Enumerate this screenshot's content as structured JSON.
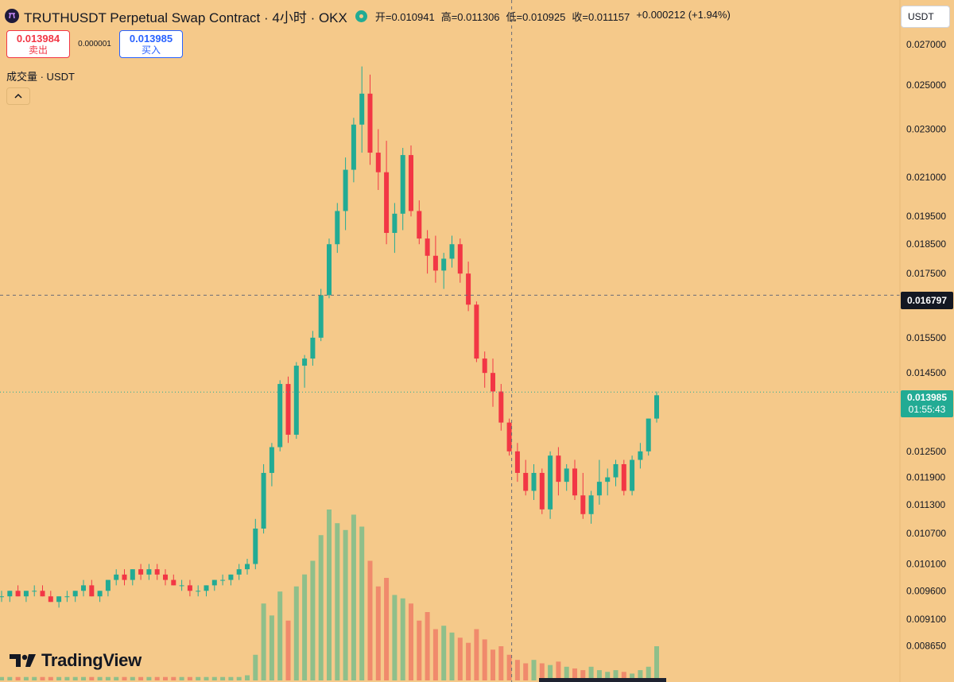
{
  "header": {
    "symbol_title": "TRUTHUSDT Perpetual Swap Contract · 4小时 · OKX",
    "open": "开=0.010941",
    "high": "高=0.011306",
    "low": "低=0.010925",
    "close": "收=0.011157",
    "change": "+0.000212 (+1.94%)"
  },
  "trade": {
    "sell_price": "0.013984",
    "sell_label": "卖出",
    "spread": "0.000001",
    "buy_price": "0.013985",
    "buy_label": "买入"
  },
  "volume_pane": {
    "label": "成交量 · USDT"
  },
  "currency": {
    "selected": "USDT"
  },
  "price_axis": {
    "crosshair_price": "0.016797",
    "last_price": "0.013985",
    "countdown": "01:55:43"
  },
  "watermark": {
    "brand": "TradingView"
  },
  "colors": {
    "background": "#f5c98a",
    "up": "#22ab94",
    "down": "#f23645",
    "volume_up": "#8fbf8a",
    "volume_down": "#f08a6c"
  },
  "chart_data": {
    "type": "candlestick",
    "scale": "log",
    "ylim": [
      0.0083,
      0.0285
    ],
    "y_ticks": [
      "0.027000",
      "0.025000",
      "0.023000",
      "0.021000",
      "0.019500",
      "0.018500",
      "0.017500",
      "0.016500",
      "0.015500",
      "0.014500",
      "0.013500",
      "0.012500",
      "0.011900",
      "0.011300",
      "0.010700",
      "0.010100",
      "0.009600",
      "0.009100",
      "0.008650"
    ],
    "candles": [
      [
        0.0095,
        0.0096,
        0.0094,
        0.0095
      ],
      [
        0.0095,
        0.0096,
        0.0094,
        0.0096
      ],
      [
        0.0096,
        0.0097,
        0.0095,
        0.0095
      ],
      [
        0.0095,
        0.0096,
        0.0094,
        0.0096
      ],
      [
        0.0096,
        0.0097,
        0.0095,
        0.0096
      ],
      [
        0.0096,
        0.0097,
        0.0095,
        0.0095
      ],
      [
        0.0095,
        0.0096,
        0.0094,
        0.0094
      ],
      [
        0.0094,
        0.0095,
        0.0093,
        0.0095
      ],
      [
        0.0095,
        0.0096,
        0.0094,
        0.0095
      ],
      [
        0.0095,
        0.0096,
        0.0094,
        0.0096
      ],
      [
        0.0096,
        0.0098,
        0.0095,
        0.0097
      ],
      [
        0.0097,
        0.0098,
        0.0095,
        0.0095
      ],
      [
        0.0095,
        0.0096,
        0.0094,
        0.0096
      ],
      [
        0.0096,
        0.0098,
        0.0095,
        0.0098
      ],
      [
        0.0098,
        0.01,
        0.0097,
        0.0099
      ],
      [
        0.0099,
        0.01,
        0.0097,
        0.0098
      ],
      [
        0.0098,
        0.01,
        0.0097,
        0.01
      ],
      [
        0.01,
        0.0101,
        0.0098,
        0.0099
      ],
      [
        0.0099,
        0.0101,
        0.0098,
        0.01
      ],
      [
        0.01,
        0.0101,
        0.0098,
        0.0099
      ],
      [
        0.0099,
        0.01,
        0.0097,
        0.0098
      ],
      [
        0.0098,
        0.0099,
        0.0097,
        0.0097
      ],
      [
        0.0097,
        0.0098,
        0.0096,
        0.0097
      ],
      [
        0.0097,
        0.0098,
        0.0095,
        0.0096
      ],
      [
        0.0096,
        0.0097,
        0.0095,
        0.0096
      ],
      [
        0.0096,
        0.0097,
        0.0095,
        0.0097
      ],
      [
        0.0097,
        0.0098,
        0.0096,
        0.0098
      ],
      [
        0.0098,
        0.0099,
        0.0097,
        0.0098
      ],
      [
        0.0098,
        0.0099,
        0.0097,
        0.0099
      ],
      [
        0.0099,
        0.0101,
        0.0098,
        0.01
      ],
      [
        0.01,
        0.0102,
        0.0099,
        0.0101
      ],
      [
        0.0101,
        0.011,
        0.01,
        0.0108
      ],
      [
        0.0108,
        0.0122,
        0.0107,
        0.012
      ],
      [
        0.012,
        0.0127,
        0.0117,
        0.0126
      ],
      [
        0.0126,
        0.0143,
        0.0125,
        0.0142
      ],
      [
        0.0142,
        0.0144,
        0.0127,
        0.0129
      ],
      [
        0.0129,
        0.0148,
        0.0128,
        0.0147
      ],
      [
        0.0147,
        0.015,
        0.0141,
        0.0149
      ],
      [
        0.0149,
        0.0157,
        0.0147,
        0.0155
      ],
      [
        0.0155,
        0.017,
        0.0154,
        0.0168
      ],
      [
        0.0168,
        0.0187,
        0.0167,
        0.0185
      ],
      [
        0.0185,
        0.02,
        0.0182,
        0.0197
      ],
      [
        0.0197,
        0.0218,
        0.019,
        0.0213
      ],
      [
        0.0213,
        0.0235,
        0.0208,
        0.0232
      ],
      [
        0.0232,
        0.0259,
        0.022,
        0.0246
      ],
      [
        0.0246,
        0.0255,
        0.0215,
        0.022
      ],
      [
        0.022,
        0.023,
        0.0205,
        0.0212
      ],
      [
        0.0212,
        0.0225,
        0.0185,
        0.0189
      ],
      [
        0.0189,
        0.02,
        0.0182,
        0.0196
      ],
      [
        0.0196,
        0.0222,
        0.019,
        0.0219
      ],
      [
        0.0219,
        0.0223,
        0.0195,
        0.0197
      ],
      [
        0.0197,
        0.0201,
        0.0185,
        0.0187
      ],
      [
        0.0187,
        0.019,
        0.0175,
        0.0181
      ],
      [
        0.0181,
        0.0188,
        0.0172,
        0.0176
      ],
      [
        0.0176,
        0.0182,
        0.017,
        0.018
      ],
      [
        0.018,
        0.0188,
        0.0177,
        0.0185
      ],
      [
        0.0185,
        0.0187,
        0.0172,
        0.0175
      ],
      [
        0.0175,
        0.0179,
        0.0163,
        0.0165
      ],
      [
        0.0165,
        0.0166,
        0.0148,
        0.0149
      ],
      [
        0.0149,
        0.0151,
        0.0141,
        0.0145
      ],
      [
        0.0145,
        0.0149,
        0.0136,
        0.014
      ],
      [
        0.014,
        0.0142,
        0.013,
        0.0132
      ],
      [
        0.0132,
        0.0133,
        0.0124,
        0.0125
      ],
      [
        0.0125,
        0.0127,
        0.0118,
        0.012
      ],
      [
        0.012,
        0.0123,
        0.0115,
        0.0116
      ],
      [
        0.0116,
        0.0122,
        0.0114,
        0.012
      ],
      [
        0.012,
        0.0121,
        0.0111,
        0.0112
      ],
      [
        0.0112,
        0.0125,
        0.011,
        0.0124
      ],
      [
        0.0124,
        0.0126,
        0.0115,
        0.0118
      ],
      [
        0.0118,
        0.0122,
        0.0116,
        0.0121
      ],
      [
        0.0121,
        0.0123,
        0.0114,
        0.0115
      ],
      [
        0.0115,
        0.012,
        0.011,
        0.0111
      ],
      [
        0.0111,
        0.0116,
        0.0109,
        0.0115
      ],
      [
        0.0115,
        0.0123,
        0.0113,
        0.0118
      ],
      [
        0.0118,
        0.0121,
        0.0115,
        0.0119
      ],
      [
        0.0119,
        0.0123,
        0.0117,
        0.0122
      ],
      [
        0.0122,
        0.0123,
        0.0115,
        0.0116
      ],
      [
        0.0116,
        0.0124,
        0.0115,
        0.0123
      ],
      [
        0.0123,
        0.0127,
        0.0121,
        0.0125
      ],
      [
        0.0125,
        0.0133,
        0.0124,
        0.0133
      ],
      [
        0.0133,
        0.014,
        0.0132,
        0.0139
      ]
    ],
    "volumes": [
      0.02,
      0.02,
      0.02,
      0.02,
      0.02,
      0.02,
      0.02,
      0.02,
      0.02,
      0.02,
      0.02,
      0.02,
      0.02,
      0.02,
      0.02,
      0.02,
      0.02,
      0.02,
      0.02,
      0.02,
      0.02,
      0.02,
      0.02,
      0.02,
      0.02,
      0.02,
      0.02,
      0.02,
      0.02,
      0.02,
      0.03,
      0.15,
      0.45,
      0.38,
      0.52,
      0.35,
      0.55,
      0.62,
      0.7,
      0.85,
      1.0,
      0.92,
      0.88,
      0.97,
      0.9,
      0.7,
      0.55,
      0.6,
      0.5,
      0.48,
      0.45,
      0.35,
      0.4,
      0.3,
      0.32,
      0.28,
      0.25,
      0.22,
      0.3,
      0.24,
      0.18,
      0.2,
      0.15,
      0.12,
      0.1,
      0.12,
      0.1,
      0.09,
      0.11,
      0.08,
      0.07,
      0.06,
      0.08,
      0.06,
      0.05,
      0.06,
      0.05,
      0.04,
      0.06,
      0.08,
      0.2
    ],
    "crosshair": {
      "price": 0.016797,
      "candle_index": 62
    },
    "last_price": 0.013985
  }
}
